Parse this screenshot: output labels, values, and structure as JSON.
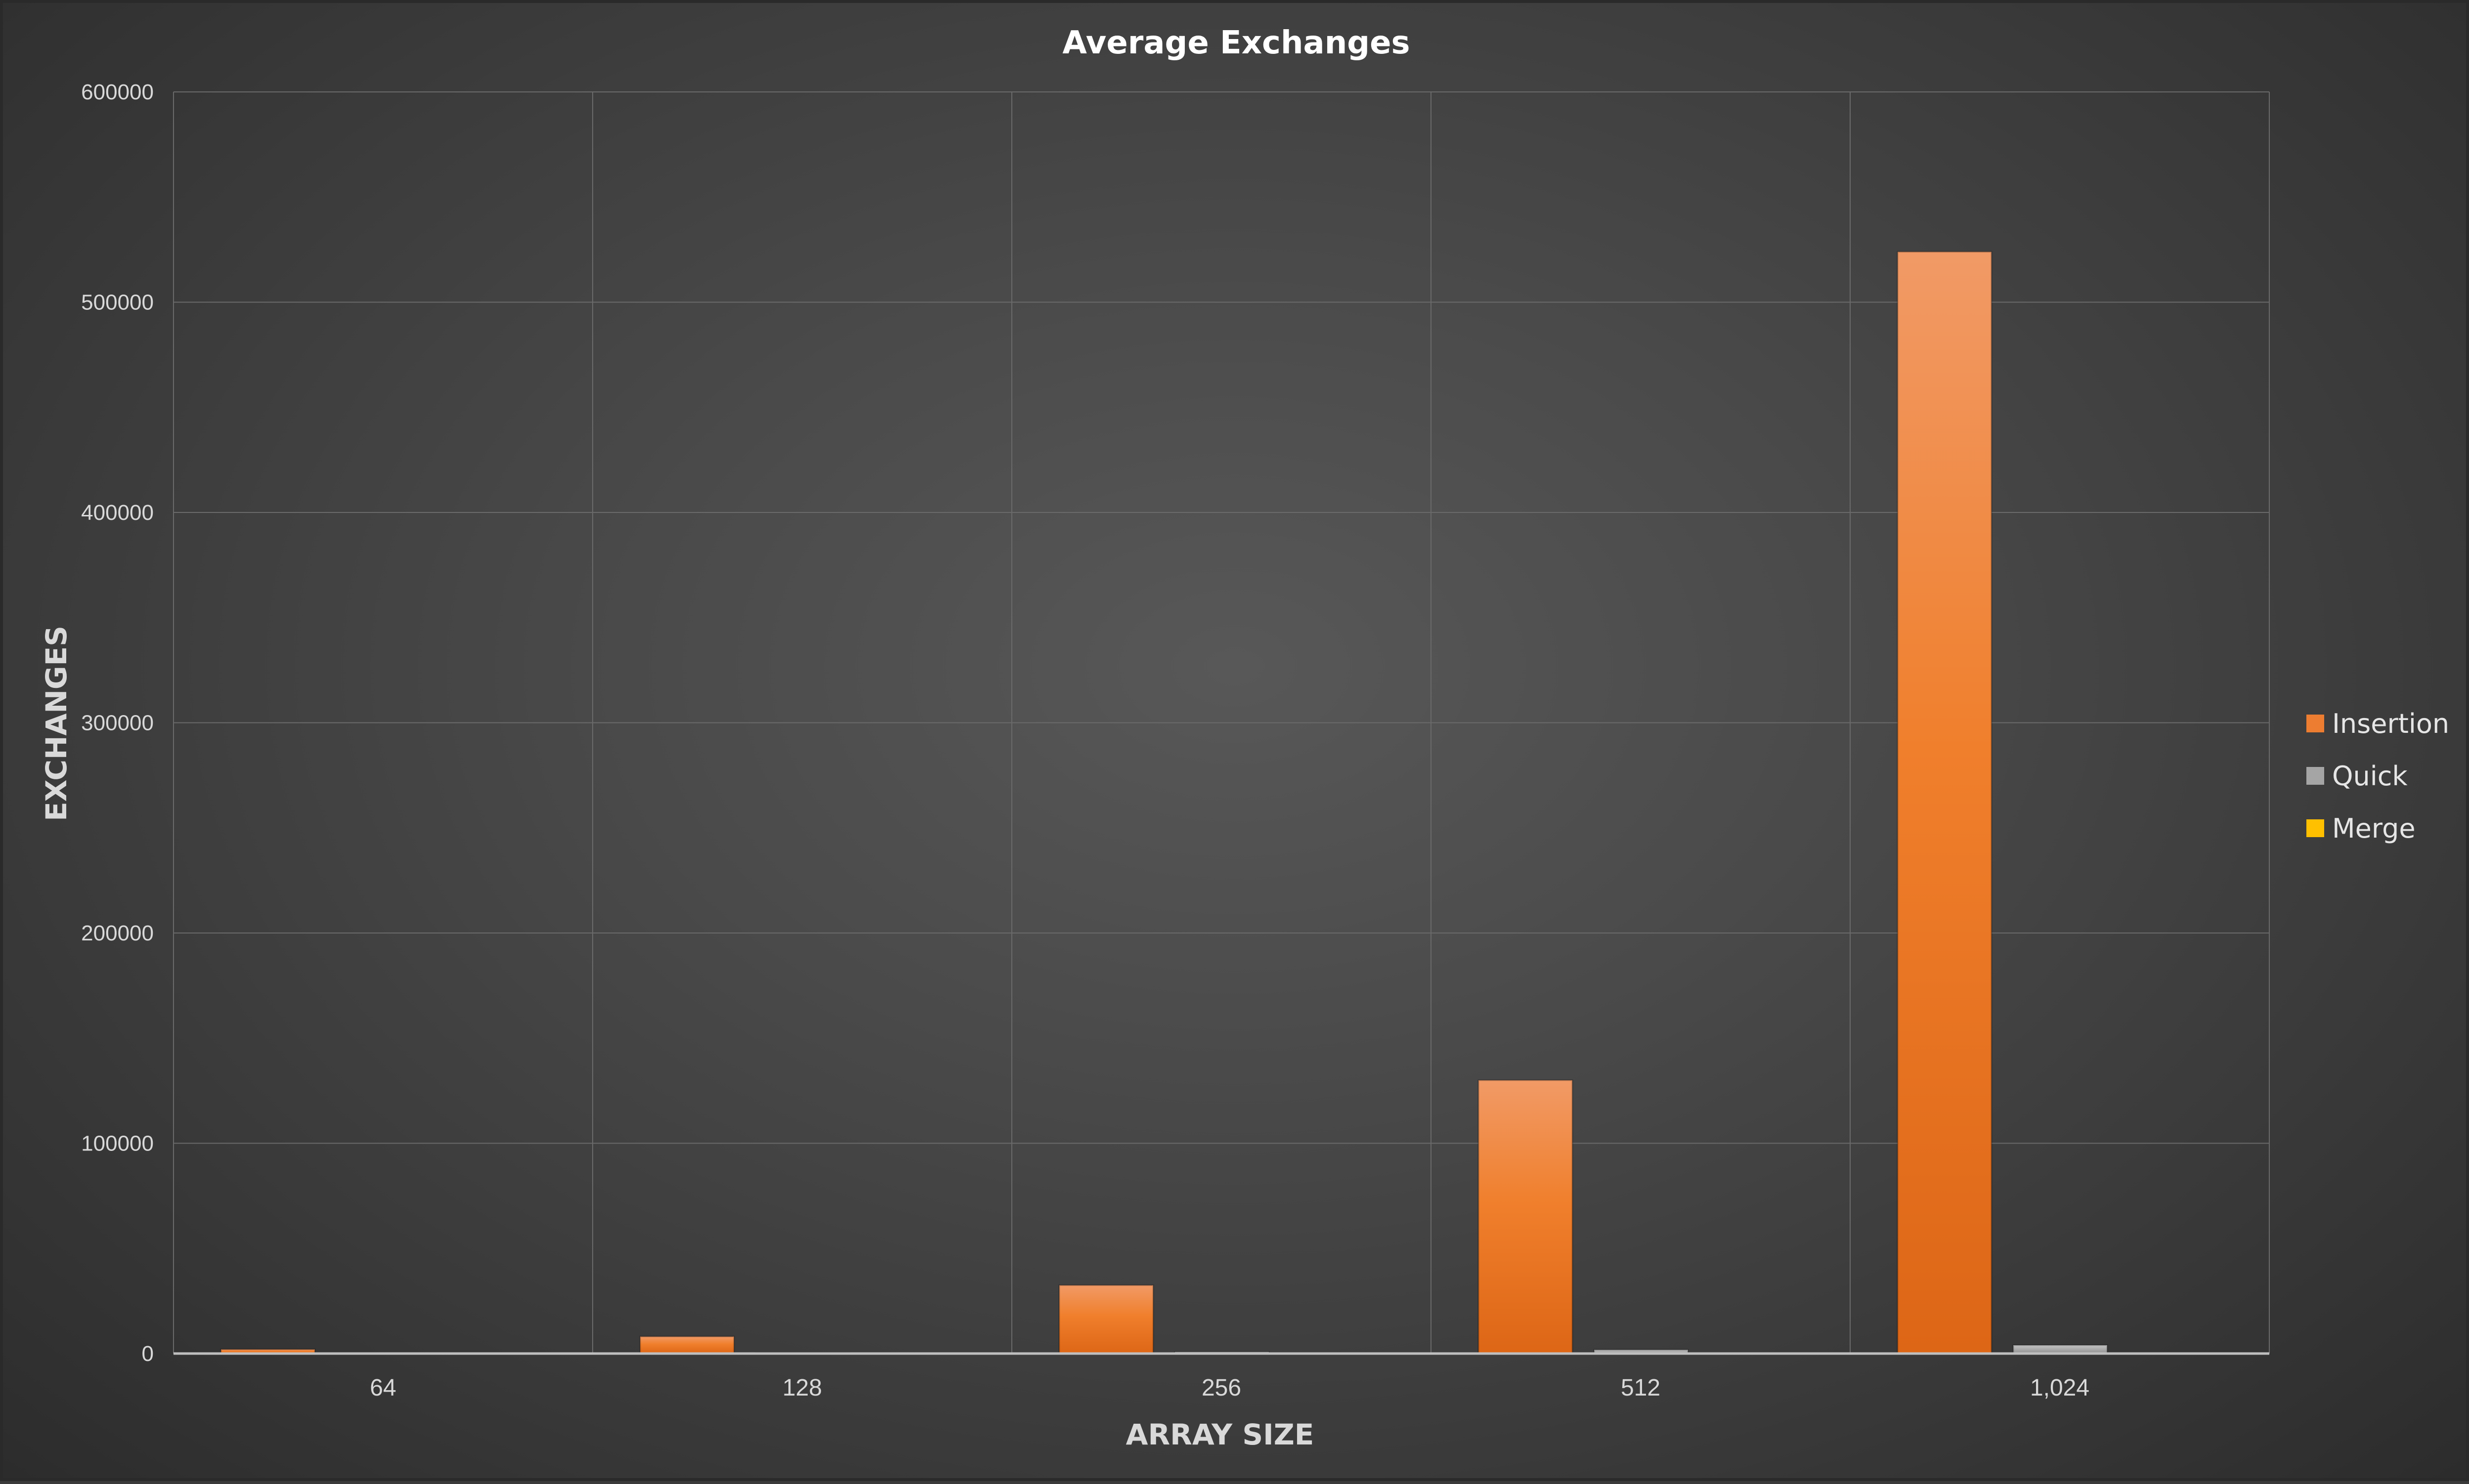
{
  "chart_data": {
    "type": "bar",
    "title": "Average Exchanges",
    "xlabel": "ARRAY SIZE",
    "ylabel": "EXCHANGES",
    "categories": [
      "64",
      "128",
      "256",
      "512",
      "1,024"
    ],
    "series": [
      {
        "name": "Insertion",
        "color": "#ed7d31",
        "values": [
          2000,
          8100,
          32500,
          130000,
          524000
        ]
      },
      {
        "name": "Quick",
        "color": "#a5a5a5",
        "values": [
          150,
          350,
          800,
          1800,
          4000
        ]
      },
      {
        "name": "Merge",
        "color": "#ffc000",
        "values": [
          0,
          0,
          0,
          0,
          0
        ]
      }
    ],
    "ylim": [
      0,
      600000
    ],
    "yticks": [
      0,
      100000,
      200000,
      300000,
      400000,
      500000,
      600000
    ],
    "ytick_labels": [
      "0",
      "100000",
      "200000",
      "300000",
      "400000",
      "500000",
      "600000"
    ],
    "grid": true,
    "legend_position": "right"
  }
}
